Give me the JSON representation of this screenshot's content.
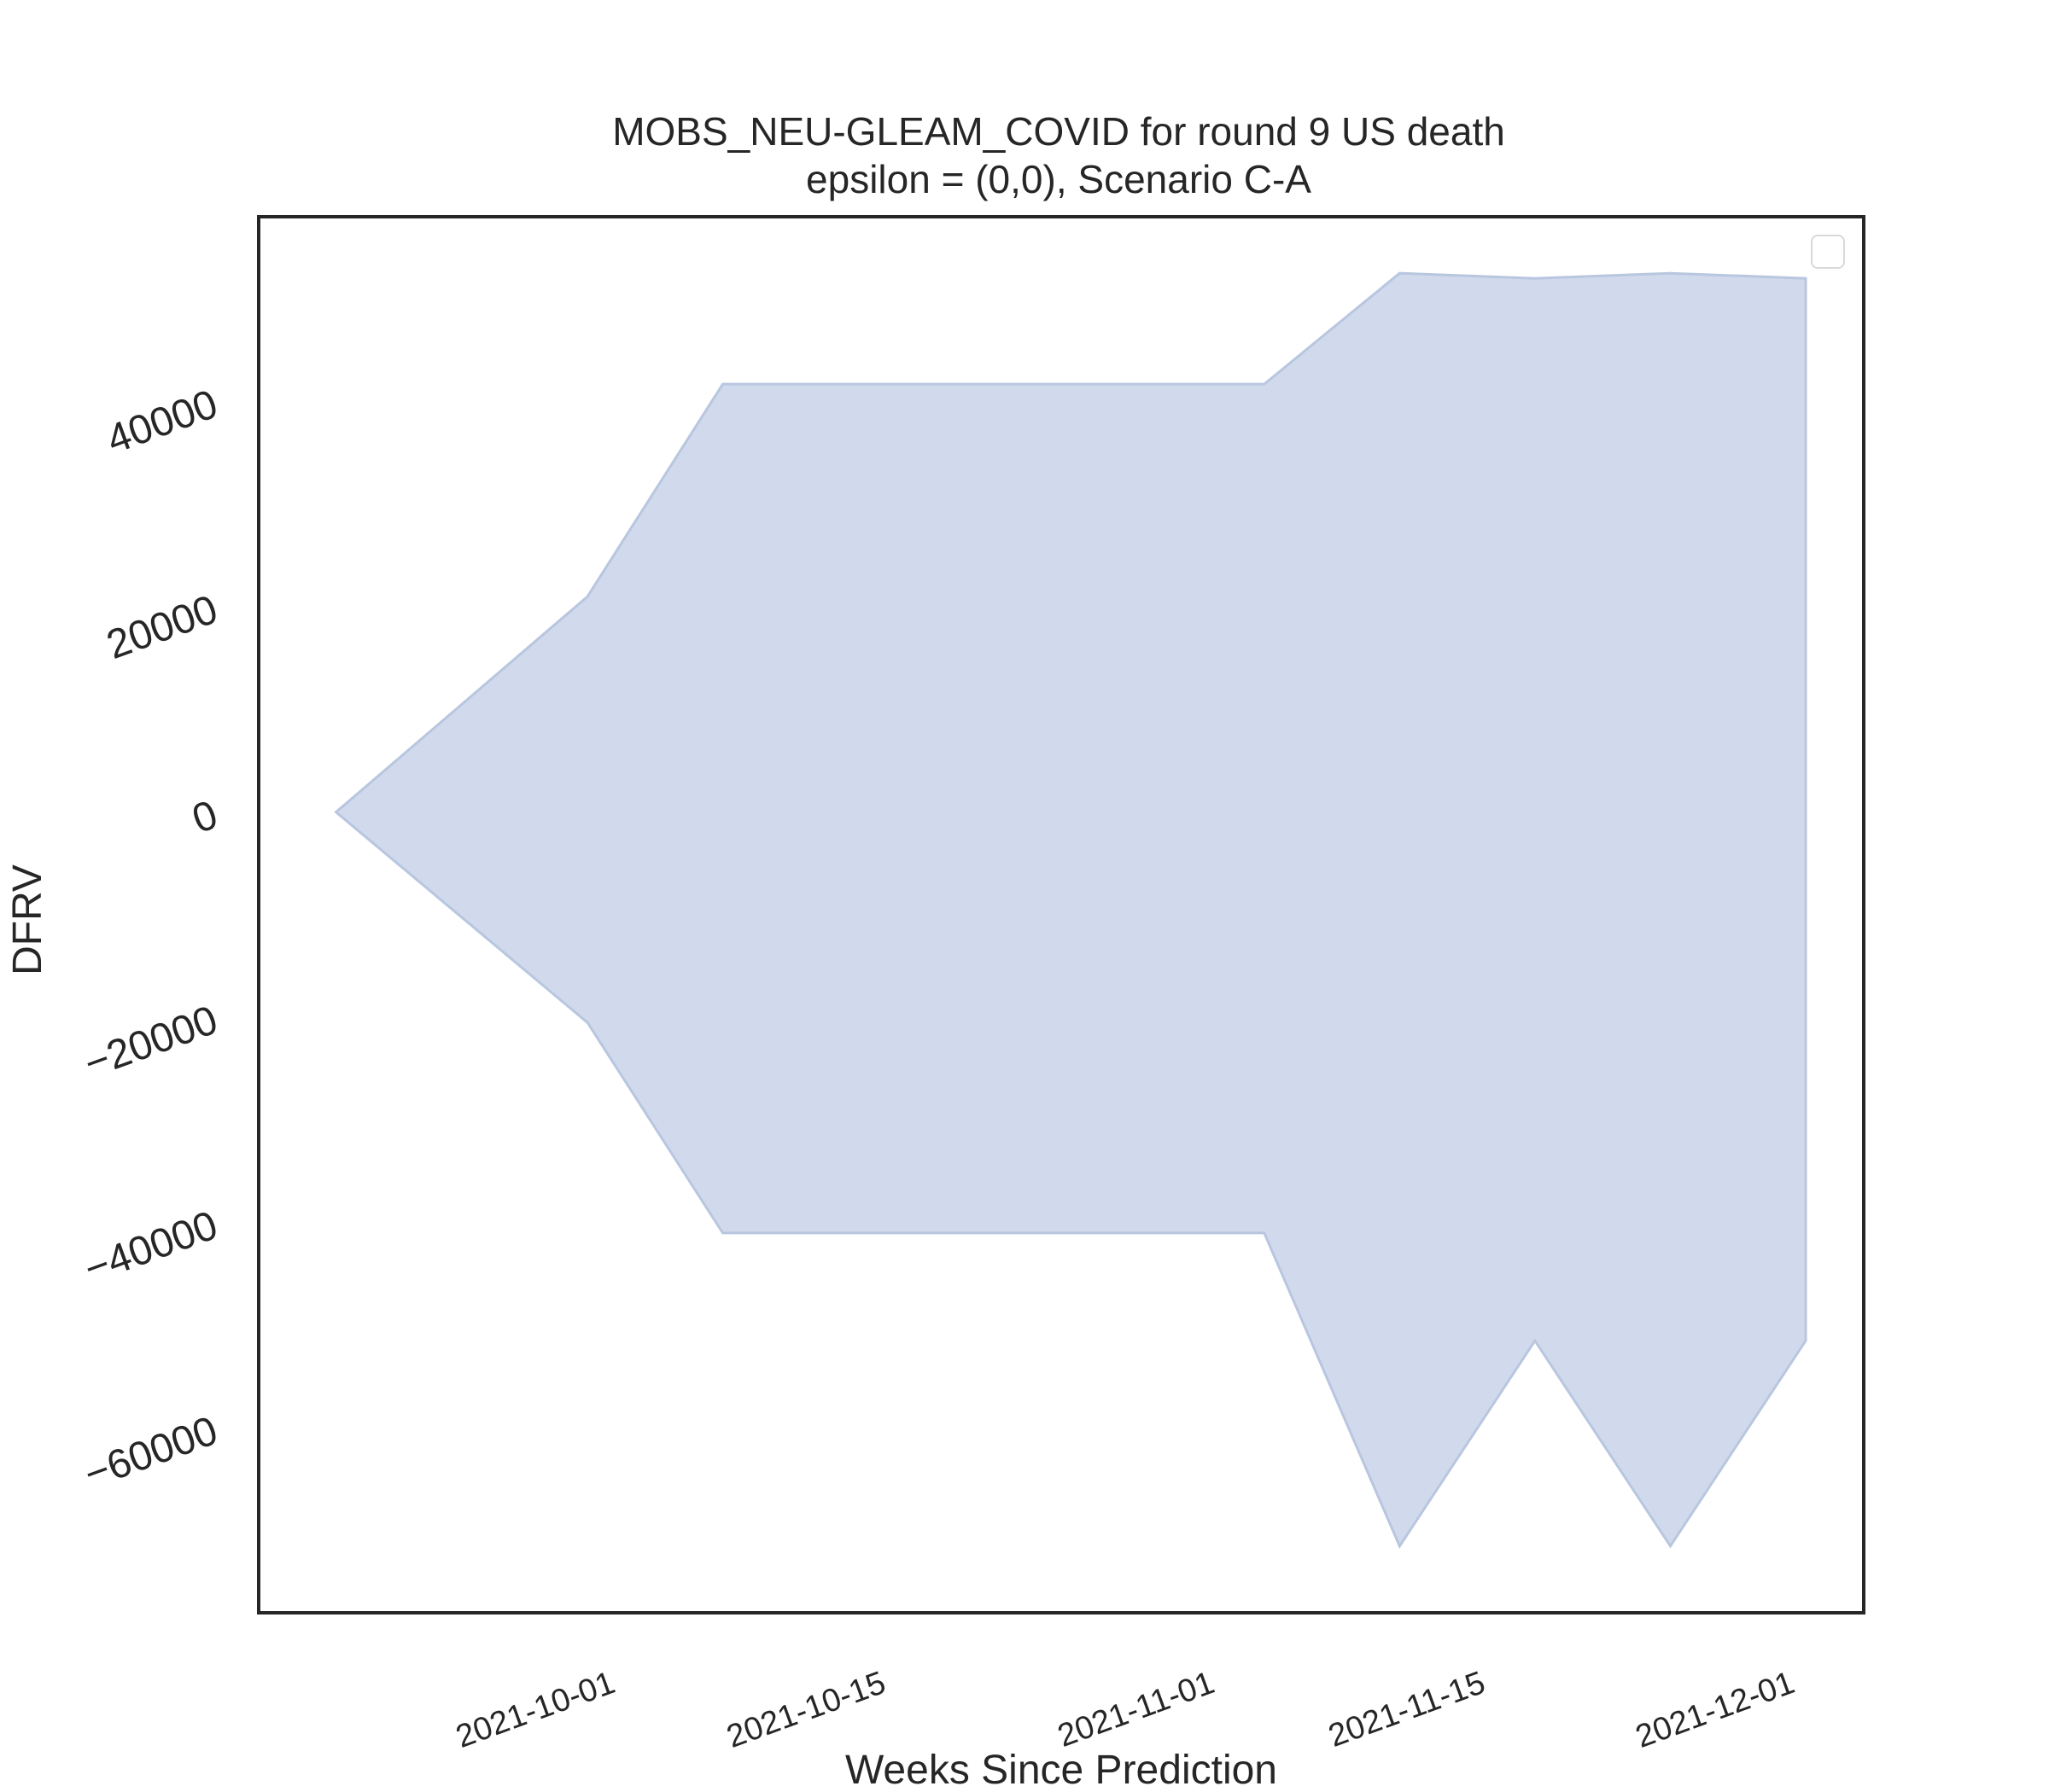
{
  "chart_data": {
    "type": "area",
    "title": "MOBS_NEU-GLEAM_COVID for round 9 US death",
    "subtitle": "epsilon = (0,0), Scenario C-A",
    "xlabel": "Weeks Since Prediction",
    "ylabel": "DFRV",
    "x_ticks": [
      "2021-10-01",
      "2021-10-15",
      "2021-11-01",
      "2021-11-15",
      "2021-12-01"
    ],
    "y_ticks": [
      -60000,
      -40000,
      -20000,
      0,
      20000,
      40000
    ],
    "xlim": [
      "2021-09-13",
      "2021-12-05"
    ],
    "ylim": [
      -78000,
      58000
    ],
    "grid": false,
    "legend": {
      "position": "upper-right",
      "entries": []
    },
    "colors": {
      "fill": "#d1daec",
      "edge": "#b8c6e0",
      "text": "#262626",
      "frame": "#262626"
    },
    "series": [
      {
        "x": [
          "2021-09-17",
          "2021-09-30",
          "2021-10-07",
          "2021-10-14",
          "2021-10-21",
          "2021-10-28",
          "2021-11-04",
          "2021-11-11",
          "2021-11-18",
          "2021-11-25",
          "2021-12-02"
        ],
        "lower": [
          0,
          -20500,
          -41000,
          -41000,
          -41000,
          -41000,
          -41000,
          -71500,
          -51500,
          -71500,
          -51500
        ],
        "upper": [
          0,
          21000,
          41700,
          41700,
          41700,
          41700,
          41700,
          52500,
          52000,
          52500,
          52000
        ]
      }
    ]
  }
}
